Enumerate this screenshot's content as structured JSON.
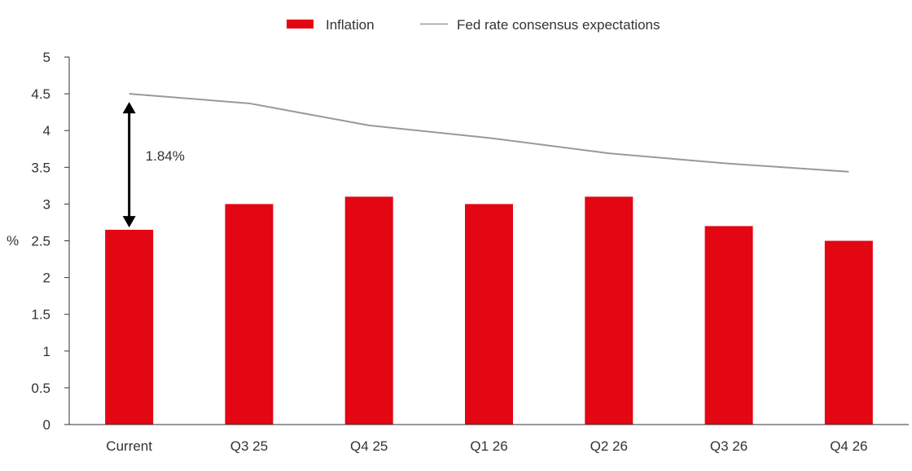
{
  "chart_data": {
    "type": "bar",
    "categories": [
      "Current",
      "Q3 25",
      "Q4 25",
      "Q1 26",
      "Q2 26",
      "Q3 26",
      "Q4 26"
    ],
    "series": [
      {
        "name": "Inflation",
        "kind": "bar",
        "color": "#e30613",
        "values": [
          2.65,
          3.0,
          3.1,
          3.0,
          3.1,
          2.7,
          2.5
        ]
      },
      {
        "name": "Fed rate consensus expectations",
        "kind": "line",
        "color": "#999999",
        "values": [
          4.5,
          4.37,
          4.07,
          3.9,
          3.69,
          3.55,
          3.44
        ]
      }
    ],
    "ylabel": "%",
    "xlabel": "",
    "ylim": [
      0,
      5
    ],
    "yticks": [
      "0",
      "0.5",
      "1",
      "1.5",
      "2",
      "2.5",
      "3",
      "3.5",
      "4",
      "4.5",
      "5"
    ],
    "legend_position": "top-center",
    "grid": false,
    "annotation": {
      "text": "1.84%",
      "category": "Current",
      "from": 2.66,
      "to": 4.5
    }
  }
}
